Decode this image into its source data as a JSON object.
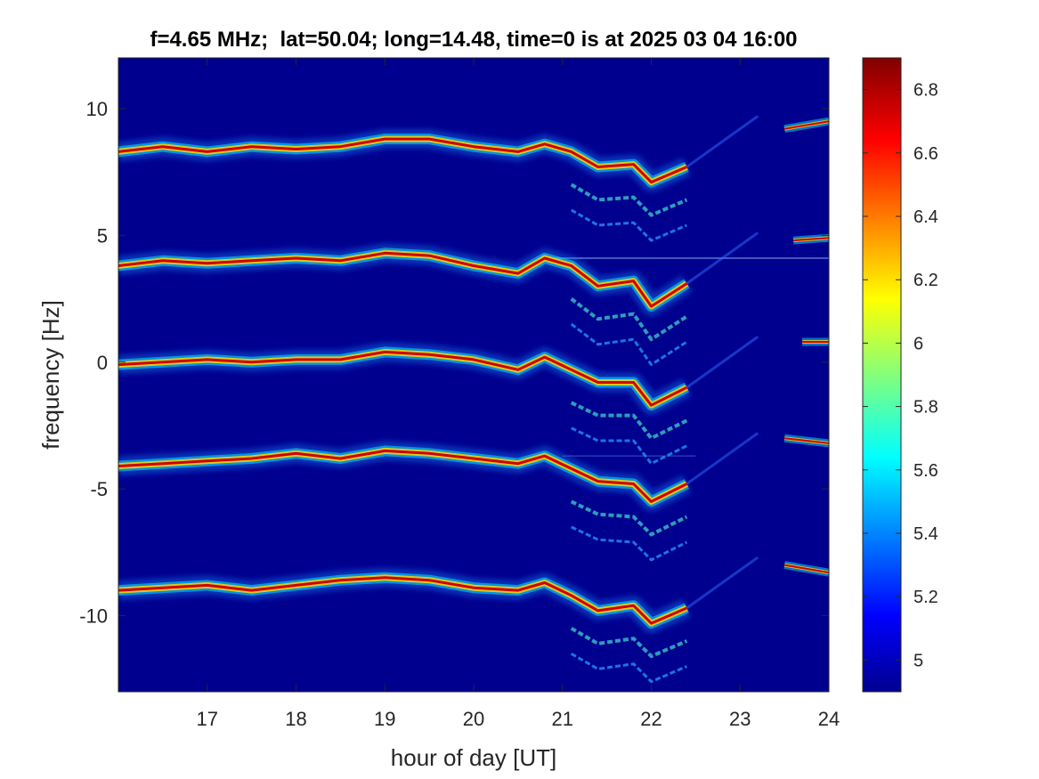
{
  "chart_data": {
    "type": "heatmap",
    "title": "f=4.65 MHz;  lat=50.04; long=14.48, time=0 is at 2025 03 04 16:00",
    "xlabel": "hour of day [UT]",
    "ylabel": "frequency [Hz]",
    "xlim": [
      16,
      24
    ],
    "ylim": [
      -13,
      12
    ],
    "xticks": [
      17,
      18,
      19,
      20,
      21,
      22,
      23,
      24
    ],
    "xtick_labels": [
      "17",
      "18",
      "19",
      "20",
      "21",
      "22",
      "23",
      "24"
    ],
    "yticks": [
      10,
      5,
      0,
      -5,
      -10
    ],
    "ytick_labels": [
      "10",
      "5",
      "0",
      "-5",
      "-10"
    ],
    "colorbar": {
      "colormap": "jet",
      "clim": [
        4.9,
        6.9
      ],
      "ticks": [
        6.8,
        6.6,
        6.4,
        6.2,
        6,
        5.8,
        5.6,
        5.4,
        5.2,
        5
      ],
      "tick_labels": [
        "6.8",
        "6.6",
        "6.4",
        "6.2",
        "6",
        "5.8",
        "5.6",
        "5.4",
        "5.2",
        "5"
      ]
    },
    "background_color": "#00008f",
    "traces": [
      {
        "name": "",
        "center": 8.4,
        "points": [
          [
            16,
            8.3
          ],
          [
            16.5,
            8.5
          ],
          [
            17,
            8.3
          ],
          [
            17.5,
            8.5
          ],
          [
            18,
            8.4
          ],
          [
            18.5,
            8.5
          ],
          [
            19,
            8.8
          ],
          [
            19.5,
            8.8
          ],
          [
            20,
            8.5
          ],
          [
            20.5,
            8.3
          ],
          [
            20.8,
            8.6
          ],
          [
            21.1,
            8.3
          ],
          [
            21.4,
            7.7
          ],
          [
            21.8,
            7.8
          ],
          [
            22.0,
            7.1
          ],
          [
            22.4,
            7.7
          ]
        ]
      },
      {
        "name": "",
        "center": 4.0,
        "points": [
          [
            16,
            3.8
          ],
          [
            16.5,
            4.0
          ],
          [
            17,
            3.9
          ],
          [
            17.5,
            4.0
          ],
          [
            18,
            4.1
          ],
          [
            18.5,
            4.0
          ],
          [
            19,
            4.3
          ],
          [
            19.5,
            4.2
          ],
          [
            20,
            3.8
          ],
          [
            20.5,
            3.5
          ],
          [
            20.8,
            4.1
          ],
          [
            21.1,
            3.8
          ],
          [
            21.4,
            3.0
          ],
          [
            21.8,
            3.2
          ],
          [
            22.0,
            2.2
          ],
          [
            22.4,
            3.1
          ]
        ]
      },
      {
        "name": "",
        "center": 0.0,
        "points": [
          [
            16,
            -0.1
          ],
          [
            16.5,
            0.0
          ],
          [
            17,
            0.1
          ],
          [
            17.5,
            0.0
          ],
          [
            18,
            0.1
          ],
          [
            18.5,
            0.1
          ],
          [
            19,
            0.4
          ],
          [
            19.5,
            0.3
          ],
          [
            20,
            0.1
          ],
          [
            20.5,
            -0.3
          ],
          [
            20.8,
            0.2
          ],
          [
            21.1,
            -0.3
          ],
          [
            21.4,
            -0.8
          ],
          [
            21.8,
            -0.8
          ],
          [
            22.0,
            -1.7
          ],
          [
            22.4,
            -1.0
          ]
        ]
      },
      {
        "name": "",
        "center": -4.0,
        "points": [
          [
            16,
            -4.1
          ],
          [
            16.5,
            -4.0
          ],
          [
            17,
            -3.9
          ],
          [
            17.5,
            -3.8
          ],
          [
            18,
            -3.6
          ],
          [
            18.5,
            -3.8
          ],
          [
            19,
            -3.5
          ],
          [
            19.5,
            -3.6
          ],
          [
            20,
            -3.8
          ],
          [
            20.5,
            -4.0
          ],
          [
            20.8,
            -3.7
          ],
          [
            21.1,
            -4.2
          ],
          [
            21.4,
            -4.7
          ],
          [
            21.8,
            -4.8
          ],
          [
            22.0,
            -5.5
          ],
          [
            22.4,
            -4.8
          ]
        ]
      },
      {
        "name": "",
        "center": -9.0,
        "points": [
          [
            16,
            -9.0
          ],
          [
            16.5,
            -8.9
          ],
          [
            17,
            -8.8
          ],
          [
            17.5,
            -9.0
          ],
          [
            18,
            -8.8
          ],
          [
            18.5,
            -8.6
          ],
          [
            19,
            -8.5
          ],
          [
            19.5,
            -8.6
          ],
          [
            20,
            -8.9
          ],
          [
            20.5,
            -9.0
          ],
          [
            20.8,
            -8.7
          ],
          [
            21.1,
            -9.2
          ],
          [
            21.4,
            -9.8
          ],
          [
            21.8,
            -9.6
          ],
          [
            22.0,
            -10.3
          ],
          [
            22.4,
            -9.7
          ]
        ]
      }
    ],
    "late_fragments": [
      {
        "x": [
          23.5,
          24.0
        ],
        "y": [
          9.2,
          9.5
        ]
      },
      {
        "x": [
          23.6,
          24.0
        ],
        "y": [
          4.8,
          4.9
        ]
      },
      {
        "x": [
          23.7,
          24.0
        ],
        "y": [
          0.8,
          0.8
        ]
      },
      {
        "x": [
          23.5,
          24.0
        ],
        "y": [
          -3.0,
          -3.2
        ]
      },
      {
        "x": [
          23.5,
          24.0
        ],
        "y": [
          -8.0,
          -8.3
        ]
      }
    ]
  }
}
